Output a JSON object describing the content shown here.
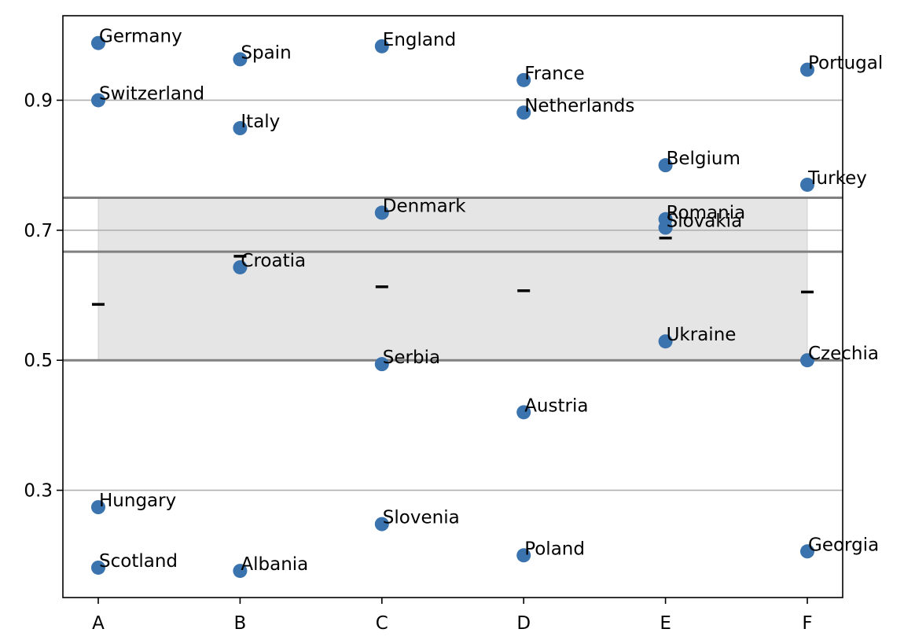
{
  "chart_data": {
    "type": "scatter",
    "title": "",
    "xlabel": "",
    "ylabel": "",
    "categories": [
      "A",
      "B",
      "C",
      "D",
      "E",
      "F"
    ],
    "yticks": [
      0.3,
      0.5,
      0.7,
      0.9
    ],
    "ytick_labels": [
      "0.3",
      "0.5",
      "0.7",
      "0.9"
    ],
    "ylim": [
      0.135,
      1.03
    ],
    "grid": "horizontal at y ticks",
    "point_color": "#3a73ad",
    "points": [
      {
        "category": "A",
        "label": "Germany",
        "value": 0.988
      },
      {
        "category": "A",
        "label": "Switzerland",
        "value": 0.9
      },
      {
        "category": "A",
        "label": "Hungary",
        "value": 0.274
      },
      {
        "category": "A",
        "label": "Scotland",
        "value": 0.181
      },
      {
        "category": "B",
        "label": "Spain",
        "value": 0.963
      },
      {
        "category": "B",
        "label": "Italy",
        "value": 0.857
      },
      {
        "category": "B",
        "label": "Croatia",
        "value": 0.643
      },
      {
        "category": "B",
        "label": "Albania",
        "value": 0.176
      },
      {
        "category": "C",
        "label": "England",
        "value": 0.983
      },
      {
        "category": "C",
        "label": "Denmark",
        "value": 0.727
      },
      {
        "category": "C",
        "label": "Serbia",
        "value": 0.494
      },
      {
        "category": "C",
        "label": "Slovenia",
        "value": 0.248
      },
      {
        "category": "D",
        "label": "France",
        "value": 0.931
      },
      {
        "category": "D",
        "label": "Netherlands",
        "value": 0.881
      },
      {
        "category": "D",
        "label": "Austria",
        "value": 0.42
      },
      {
        "category": "D",
        "label": "Poland",
        "value": 0.2
      },
      {
        "category": "E",
        "label": "Belgium",
        "value": 0.8
      },
      {
        "category": "E",
        "label": "Romania",
        "value": 0.717
      },
      {
        "category": "E",
        "label": "Slovakia",
        "value": 0.704
      },
      {
        "category": "E",
        "label": "Ukraine",
        "value": 0.529
      },
      {
        "category": "F",
        "label": "Portugal",
        "value": 0.947
      },
      {
        "category": "F",
        "label": "Turkey",
        "value": 0.77
      },
      {
        "category": "F",
        "label": "Czechia",
        "value": 0.5
      },
      {
        "category": "F",
        "label": "Georgia",
        "value": 0.206
      }
    ],
    "means": [
      {
        "category": "A",
        "value": 0.586
      },
      {
        "category": "B",
        "value": 0.66
      },
      {
        "category": "C",
        "value": 0.613
      },
      {
        "category": "D",
        "value": 0.607
      },
      {
        "category": "E",
        "value": 0.688
      },
      {
        "category": "F",
        "value": 0.605
      }
    ],
    "reference_lines": [
      0.75,
      0.667,
      0.5
    ],
    "shaded_band": {
      "from_category": "A",
      "to_category": "F",
      "ymin": 0.5,
      "ymax": 0.75,
      "color": "#e5e5e5"
    },
    "reference_line_color": "#808080",
    "grid_color": "#b0b0b0"
  }
}
